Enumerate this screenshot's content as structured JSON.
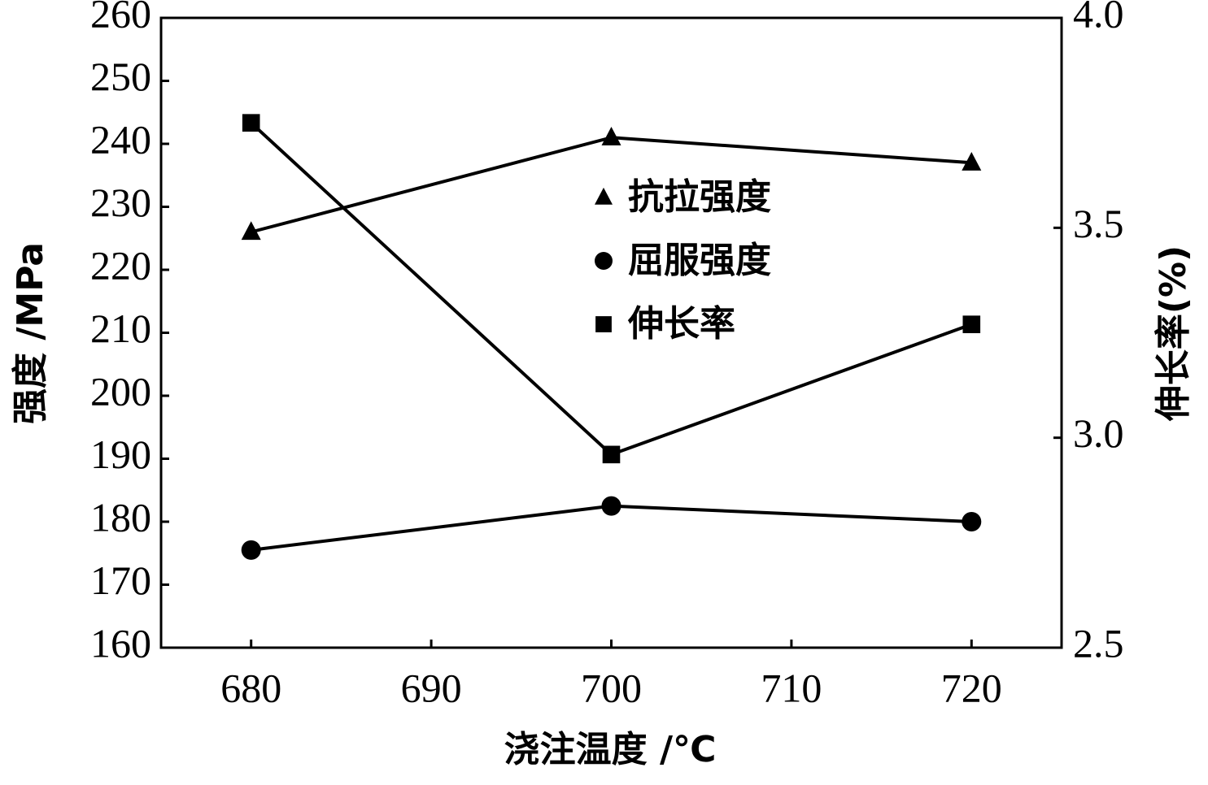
{
  "chart_data": {
    "type": "line",
    "x_label": "浇注温度 /℃",
    "y_label": "强度 /MPa",
    "y2_label": "伸长率(%)",
    "x": [
      680,
      700,
      720
    ],
    "xlim": [
      675,
      725
    ],
    "xticks": [
      680,
      690,
      700,
      710,
      720
    ],
    "ylim": [
      160,
      260
    ],
    "yticks": [
      160,
      170,
      180,
      190,
      200,
      210,
      220,
      230,
      240,
      250,
      260
    ],
    "y2lim": [
      2.5,
      4.0
    ],
    "y2ticks": [
      {
        "value": 2.5,
        "label": "2.5"
      },
      {
        "value": 3.0,
        "label": "3.0"
      },
      {
        "value": 3.5,
        "label": "3.5"
      },
      {
        "value": 4.0,
        "label": "4.0"
      }
    ],
    "series": [
      {
        "name": "抗拉强度",
        "color": "#000000",
        "marker": "triangle",
        "values": [
          226,
          241,
          237
        ]
      },
      {
        "name": "屈服强度",
        "color": "#000000",
        "marker": "circle",
        "values": [
          175.5,
          182.5,
          180
        ]
      },
      {
        "name": "伸长率",
        "color": "#000000",
        "marker": "square",
        "axis": "y2",
        "values": [
          3.75,
          2.96,
          3.27
        ]
      }
    ]
  }
}
